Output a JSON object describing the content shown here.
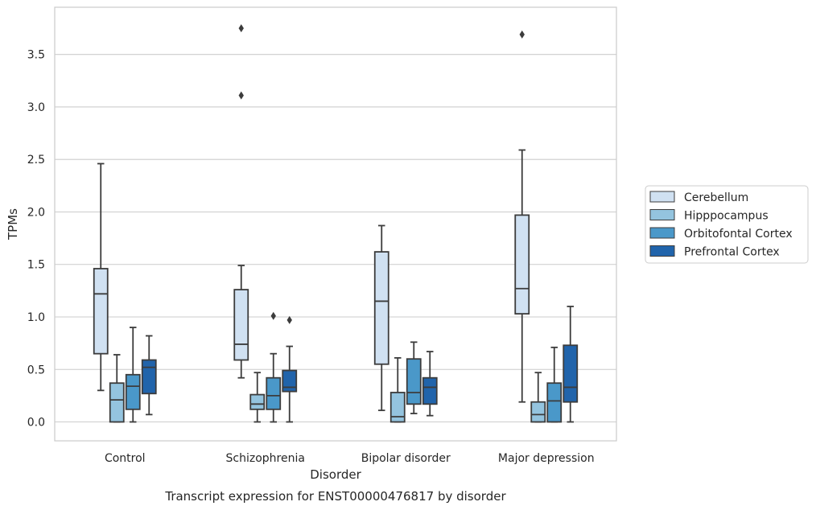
{
  "chart_data": {
    "type": "box",
    "title": "",
    "caption": "Transcript expression for ENST00000476817 by disorder",
    "xlabel": "Disorder",
    "ylabel": "TPMs",
    "ylim": [
      -0.18,
      3.95
    ],
    "yticks": [
      "0.0",
      "0.5",
      "1.0",
      "1.5",
      "2.0",
      "2.5",
      "3.0",
      "3.5"
    ],
    "grid": "horizontal",
    "legend_position": "right",
    "categories": [
      "Control",
      "Schizophrenia",
      "Bipolar disorder",
      "Major depression"
    ],
    "series": [
      {
        "name": "Cerebellum",
        "color": "#d0e1f2",
        "boxes": [
          {
            "whislo": 0.3,
            "q1": 0.65,
            "med": 1.22,
            "q3": 1.46,
            "whishi": 2.46,
            "fliers": []
          },
          {
            "whislo": 0.42,
            "q1": 0.59,
            "med": 0.74,
            "q3": 1.26,
            "whishi": 1.49,
            "fliers": [
              3.11,
              3.75
            ]
          },
          {
            "whislo": 0.11,
            "q1": 0.55,
            "med": 1.15,
            "q3": 1.62,
            "whishi": 1.87,
            "fliers": []
          },
          {
            "whislo": 0.19,
            "q1": 1.03,
            "med": 1.27,
            "q3": 1.97,
            "whishi": 2.59,
            "fliers": [
              3.69
            ]
          }
        ]
      },
      {
        "name": "Hipppocampus",
        "color": "#94c4df",
        "boxes": [
          {
            "whislo": 0.0,
            "q1": 0.0,
            "med": 0.21,
            "q3": 0.37,
            "whishi": 0.64,
            "fliers": []
          },
          {
            "whislo": 0.0,
            "q1": 0.12,
            "med": 0.17,
            "q3": 0.26,
            "whishi": 0.47,
            "fliers": []
          },
          {
            "whislo": 0.0,
            "q1": 0.0,
            "med": 0.05,
            "q3": 0.28,
            "whishi": 0.61,
            "fliers": []
          },
          {
            "whislo": 0.0,
            "q1": 0.0,
            "med": 0.07,
            "q3": 0.19,
            "whishi": 0.47,
            "fliers": []
          }
        ]
      },
      {
        "name": "Orbitofontal Cortex",
        "color": "#4a98c9",
        "boxes": [
          {
            "whislo": 0.0,
            "q1": 0.12,
            "med": 0.34,
            "q3": 0.45,
            "whishi": 0.9,
            "fliers": []
          },
          {
            "whislo": 0.0,
            "q1": 0.12,
            "med": 0.25,
            "q3": 0.42,
            "whishi": 0.65,
            "fliers": [
              1.01
            ]
          },
          {
            "whislo": 0.08,
            "q1": 0.17,
            "med": 0.28,
            "q3": 0.6,
            "whishi": 0.76,
            "fliers": []
          },
          {
            "whislo": 0.0,
            "q1": 0.0,
            "med": 0.2,
            "q3": 0.37,
            "whishi": 0.71,
            "fliers": []
          }
        ]
      },
      {
        "name": "Prefrontal Cortex",
        "color": "#2164ab",
        "boxes": [
          {
            "whislo": 0.07,
            "q1": 0.27,
            "med": 0.52,
            "q3": 0.59,
            "whishi": 0.82,
            "fliers": []
          },
          {
            "whislo": 0.0,
            "q1": 0.29,
            "med": 0.33,
            "q3": 0.49,
            "whishi": 0.72,
            "fliers": [
              0.97
            ]
          },
          {
            "whislo": 0.06,
            "q1": 0.17,
            "med": 0.33,
            "q3": 0.42,
            "whishi": 0.67,
            "fliers": []
          },
          {
            "whislo": 0.0,
            "q1": 0.19,
            "med": 0.33,
            "q3": 0.73,
            "whishi": 1.1,
            "fliers": []
          }
        ]
      }
    ]
  }
}
